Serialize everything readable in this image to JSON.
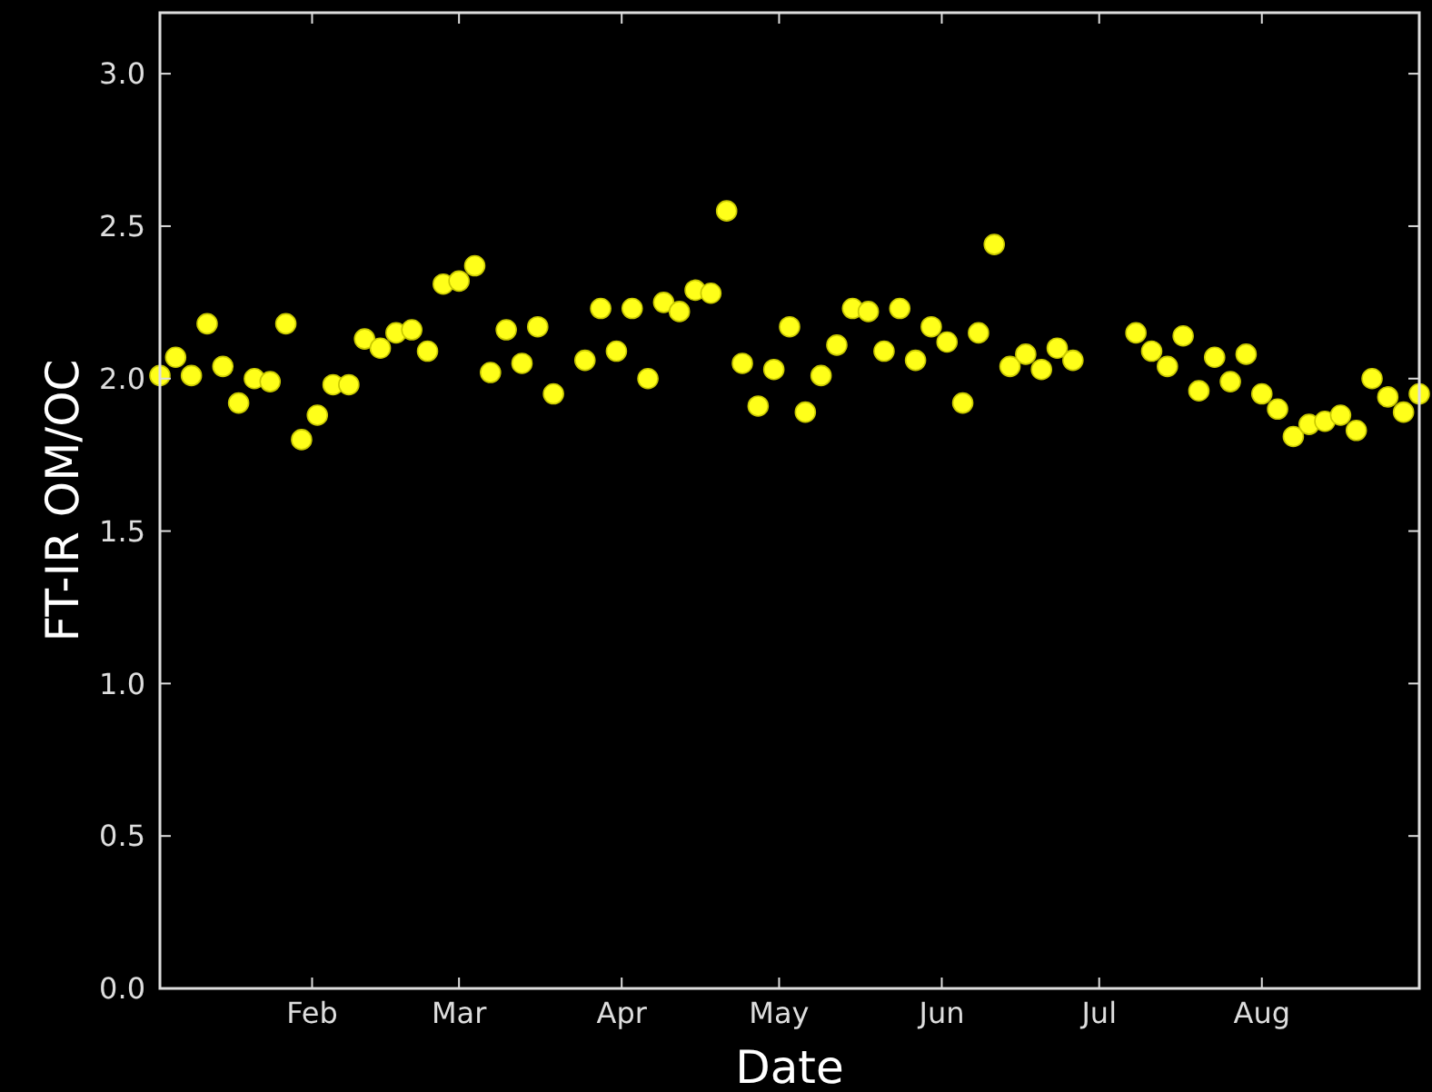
{
  "chart_data": {
    "type": "scatter",
    "xlabel": "Date",
    "ylabel": "FT-IR OM/OC",
    "marker": "circle",
    "grid": false,
    "xlim": [
      "--01-03",
      "--08-31"
    ],
    "ylim": [
      0,
      3.2
    ],
    "xticks": [
      {
        "value": "--02-01",
        "label": "Feb"
      },
      {
        "value": "--03-01",
        "label": "Mar"
      },
      {
        "value": "--04-01",
        "label": "Apr"
      },
      {
        "value": "--05-01",
        "label": "May"
      },
      {
        "value": "--06-01",
        "label": "Jun"
      },
      {
        "value": "--07-01",
        "label": "Jul"
      },
      {
        "value": "--08-01",
        "label": "Aug"
      }
    ],
    "yticks": [
      {
        "value": 0,
        "label": "0.0"
      },
      {
        "value": 0.5,
        "label": "0.5"
      },
      {
        "value": 1,
        "label": "1.0"
      },
      {
        "value": 1.5,
        "label": "1.5"
      },
      {
        "value": 2,
        "label": "2.0"
      },
      {
        "value": 2.5,
        "label": "2.5"
      },
      {
        "value": 3,
        "label": "3.0"
      }
    ],
    "x": [
      "--01-03",
      "--01-06",
      "--01-09",
      "--01-12",
      "--01-15",
      "--01-18",
      "--01-21",
      "--01-24",
      "--01-27",
      "--01-30",
      "--02-02",
      "--02-05",
      "--02-08",
      "--02-11",
      "--02-14",
      "--02-17",
      "--02-20",
      "--02-23",
      "--02-26",
      "--03-01",
      "--03-04",
      "--03-07",
      "--03-10",
      "--03-13",
      "--03-16",
      "--03-19",
      "--03-25",
      "--03-28",
      "--03-31",
      "--04-03",
      "--04-06",
      "--04-09",
      "--04-12",
      "--04-15",
      "--04-18",
      "--04-21",
      "--04-24",
      "--04-27",
      "--04-30",
      "--05-03",
      "--05-06",
      "--05-09",
      "--05-12",
      "--05-15",
      "--05-18",
      "--05-21",
      "--05-24",
      "--05-27",
      "--05-30",
      "--06-02",
      "--06-05",
      "--06-08",
      "--06-11",
      "--06-14",
      "--06-17",
      "--06-20",
      "--06-23",
      "--06-26",
      "--07-08",
      "--07-11",
      "--07-14",
      "--07-17",
      "--07-20",
      "--07-23",
      "--07-26",
      "--07-29",
      "--08-01",
      "--08-04",
      "--08-07",
      "--08-10",
      "--08-13",
      "--08-16",
      "--08-19",
      "--08-22",
      "--08-25",
      "--08-28",
      "--08-31"
    ],
    "series": [
      {
        "color": "#ffff1a",
        "values": [
          2.01,
          2.07,
          2.01,
          2.18,
          2.04,
          1.92,
          2.0,
          1.99,
          2.18,
          1.8,
          1.88,
          1.98,
          1.98,
          2.13,
          2.1,
          2.15,
          2.16,
          2.09,
          2.31,
          2.32,
          2.37,
          2.02,
          2.16,
          2.05,
          2.17,
          1.95,
          2.06,
          2.23,
          2.09,
          2.23,
          2.0,
          2.25,
          2.22,
          2.29,
          2.28,
          2.55,
          2.05,
          1.91,
          2.03,
          2.17,
          1.89,
          2.01,
          2.11,
          2.23,
          2.22,
          2.09,
          2.23,
          2.06,
          2.17,
          2.12,
          1.92,
          2.15,
          2.44,
          2.04,
          2.08,
          2.03,
          2.1,
          2.06,
          2.15,
          2.09,
          2.04,
          2.14,
          1.96,
          2.07,
          1.99,
          2.08,
          1.95,
          1.9,
          1.81,
          1.85,
          1.86,
          1.88,
          1.83,
          2.0,
          1.94,
          1.89,
          1.95
        ]
      }
    ]
  }
}
